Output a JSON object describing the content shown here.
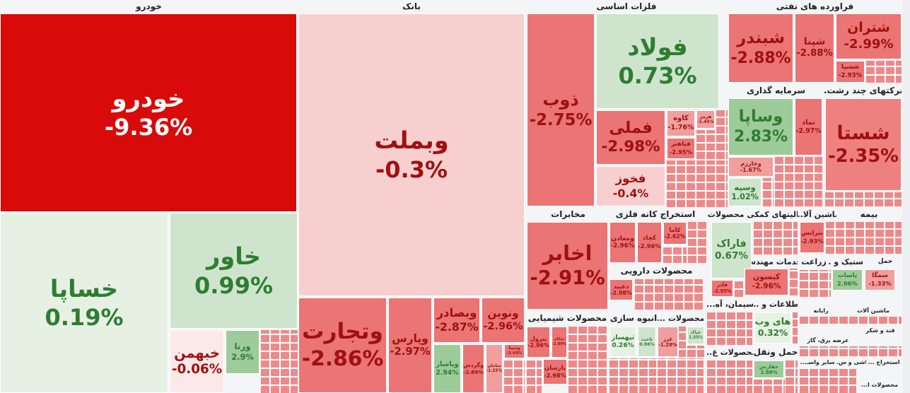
{
  "colors": {
    "S": "#d90a0a",
    "r1": "#eb7474",
    "r1b": "#ee8080",
    "r2": "#f09e9e",
    "r3": "#f8cfcf",
    "r4": "#fbe9e9",
    "g1": "#9dcb99",
    "g2": "#cfe4cd",
    "g3": "#e6f1e4",
    "text_red": "#a01010",
    "text_green": "#2e7d32",
    "text_white": "#ffffff"
  },
  "sectors": [
    "خودرو",
    "بانک",
    "فلزات اساسی",
    "فراورده های نفتی",
    "سرمایه گذاری",
    "شرکتهای چند رشت...",
    "مخابرات",
    "استخراج کانه فلزی",
    "فعالیتهای کمکی محصولات ...",
    "ماشین آلا...",
    "بیمه",
    "محصولات دارویی",
    "خدمات مهندسی",
    "زراعت",
    "لاستیک و ...",
    "حمل",
    "سیمان، آه...",
    "اطلاعات و ...",
    "محصولات شیمیایی",
    "انبوه سازی",
    "محصولات ...",
    "محصولات غ...",
    "حمل ونقل",
    "رایانه",
    "ماشین آلات",
    "قند و شکر",
    "عرضه برق، گاز",
    "سایر واسـ...",
    "کاشی و س...",
    "استخراج ...",
    "محصولات ا..."
  ],
  "tiles": [
    {
      "symbol": "خودرو",
      "change": "-9.36%",
      "color": "S"
    },
    {
      "symbol": "خساپا",
      "change": "0.19%",
      "color": "g3"
    },
    {
      "symbol": "خاور",
      "change": "0.99%",
      "color": "g2"
    },
    {
      "symbol": "خبهمن",
      "change": "-0.06%",
      "color": "r4"
    },
    {
      "symbol": "ورنا",
      "change": "2.9%",
      "color": "g1"
    },
    {
      "symbol": "وبملت",
      "change": "-0.3%",
      "color": "r3"
    },
    {
      "symbol": "وتجارت",
      "change": "-2.86%",
      "color": "r1"
    },
    {
      "symbol": "وپارس",
      "change": "-2.97%",
      "color": "r1"
    },
    {
      "symbol": "وبصادر",
      "change": "-2.87%",
      "color": "r1"
    },
    {
      "symbol": "ونوین",
      "change": "-2.96%",
      "color": "r1"
    },
    {
      "symbol": "وپاسار",
      "change": "2.94%",
      "color": "g1"
    },
    {
      "symbol": "وگردش",
      "change": "-2.89%",
      "color": "r1"
    },
    {
      "symbol": "سامان",
      "change": "-1.25%",
      "color": "r2"
    },
    {
      "symbol": "وسینا",
      "change": "-2.93%",
      "color": "r1"
    },
    {
      "symbol": "ذوب",
      "change": "-2.75%",
      "color": "r1"
    },
    {
      "symbol": "فولاد",
      "change": "0.73%",
      "color": "g2"
    },
    {
      "symbol": "فملی",
      "change": "-2.98%",
      "color": "r1"
    },
    {
      "symbol": "فخوز",
      "change": "-0.4%",
      "color": "r3"
    },
    {
      "symbol": "کاوه",
      "change": "-1.76%",
      "color": "r2"
    },
    {
      "symbol": "فباهنر",
      "change": "-2.95%",
      "color": "r1"
    },
    {
      "symbol": "هرمز",
      "change": "-1.45%",
      "color": "r2"
    },
    {
      "symbol": "شبندر",
      "change": "-2.88%",
      "color": "r1"
    },
    {
      "symbol": "شپنا",
      "change": "-2.88%",
      "color": "r1"
    },
    {
      "symbol": "شتران",
      "change": "-2.99%",
      "color": "r1"
    },
    {
      "symbol": "شسپا",
      "change": "-2.93%",
      "color": "r1"
    },
    {
      "symbol": "وساپا",
      "change": "2.83%",
      "color": "g1"
    },
    {
      "symbol": "نماد",
      "change": "-2.97%",
      "color": "r1"
    },
    {
      "symbol": "شستا",
      "change": "-2.35%",
      "color": "r1b"
    },
    {
      "symbol": "وخارزم",
      "change": "-1.67%",
      "color": "r2"
    },
    {
      "symbol": "وسپه",
      "change": "1.02%",
      "color": "g2"
    },
    {
      "symbol": "اخابر",
      "change": "-2.91%",
      "color": "r1"
    },
    {
      "symbol": "ومعادن",
      "change": "-2.96%",
      "color": "r1"
    },
    {
      "symbol": "کچاد",
      "change": "-2.96%",
      "color": "r1"
    },
    {
      "symbol": "کاما",
      "change": "-2.62%",
      "color": "r1"
    },
    {
      "symbol": "فاراک",
      "change": "0.67%",
      "color": "g2"
    },
    {
      "symbol": "فاذر",
      "change": "-2.95%",
      "color": "r1"
    },
    {
      "symbol": "بترانس",
      "change": "-2.93%",
      "color": "r1"
    },
    {
      "symbol": "کیسون",
      "change": "-2.96%",
      "color": "r1"
    },
    {
      "symbol": "دعبید",
      "change": "-2.98%",
      "color": "r1"
    },
    {
      "symbol": "بترول",
      "change": "-2.96%",
      "color": "r1"
    },
    {
      "symbol": "شکام",
      "change": "-2.99%",
      "color": "r1"
    },
    {
      "symbol": "پارسان",
      "change": "-2.98%",
      "color": "r1"
    },
    {
      "symbol": "ثپهساز",
      "change": "0.26%",
      "color": "g3"
    },
    {
      "symbol": "ثاخت",
      "change": "0.96%",
      "color": "g2"
    },
    {
      "symbol": "غزر",
      "change": "-1.28%",
      "color": "r2"
    },
    {
      "symbol": "غپاک",
      "change": "1.55%",
      "color": "g2"
    },
    {
      "symbol": "های وب",
      "change": "0.32%",
      "color": "g3"
    },
    {
      "symbol": "پاسات",
      "change": "2.96%",
      "color": "g1"
    },
    {
      "symbol": "سمگا",
      "change": "-1.33%",
      "color": "r2"
    },
    {
      "symbol": "حفارس",
      "change": "2.98%",
      "color": "g1"
    }
  ]
}
